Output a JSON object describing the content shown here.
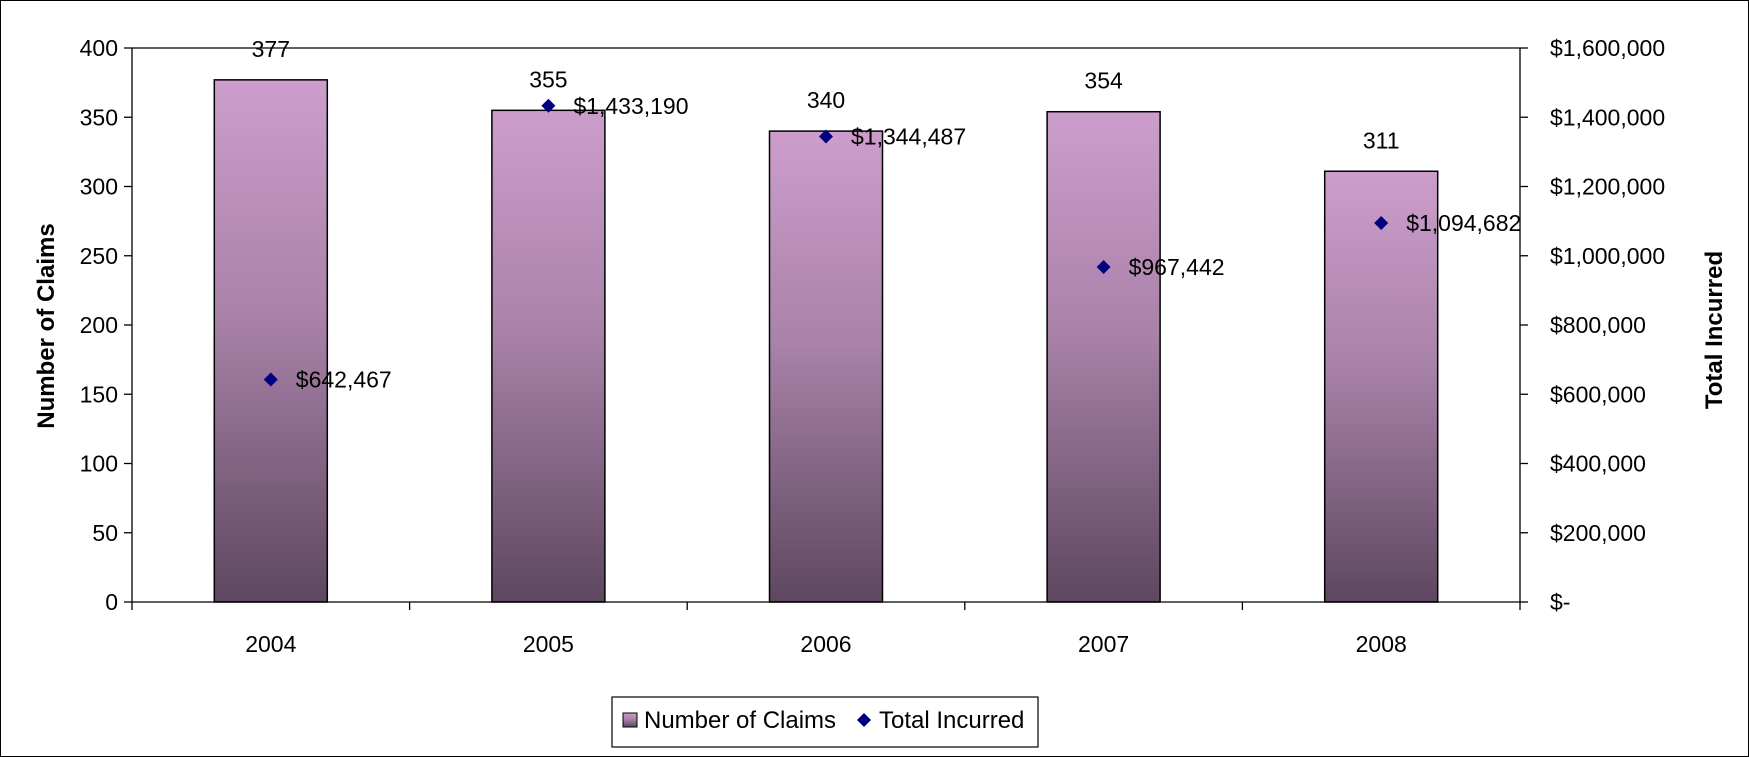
{
  "chart_data": {
    "type": "bar",
    "categories": [
      "2004",
      "2005",
      "2006",
      "2007",
      "2008"
    ],
    "series": [
      {
        "name": "Number of Claims",
        "type": "bar",
        "axis": "left",
        "values": [
          377,
          355,
          340,
          354,
          311
        ],
        "data_labels": [
          "377",
          "355",
          "340",
          "354",
          "311"
        ]
      },
      {
        "name": "Total Incurred",
        "type": "scatter",
        "marker": "diamond",
        "axis": "right",
        "values": [
          642467,
          1433190,
          1344487,
          967442,
          1094682
        ],
        "data_labels": [
          "$642,467",
          "$1,433,190",
          "$1,344,487",
          "$967,442",
          "$1,094,682"
        ]
      }
    ],
    "title": "",
    "xlabel": "",
    "ylabel": "Number of Claims",
    "y2label": "Total Incurred",
    "ylim": [
      0,
      400
    ],
    "y2lim": [
      0,
      1600000
    ],
    "yticks": [
      "0",
      "50",
      "100",
      "150",
      "200",
      "250",
      "300",
      "350",
      "400"
    ],
    "y2ticks": [
      "$-",
      "$200,000",
      "$400,000",
      "$600,000",
      "$800,000",
      "$1,000,000",
      "$1,200,000",
      "$1,400,000",
      "$1,600,000"
    ],
    "grid": false,
    "legend_position": "bottom",
    "colors": {
      "bar_top": "#cc9dcc",
      "bar_bottom": "#5e4760",
      "bar_border": "#000000",
      "marker": "#000080"
    }
  }
}
